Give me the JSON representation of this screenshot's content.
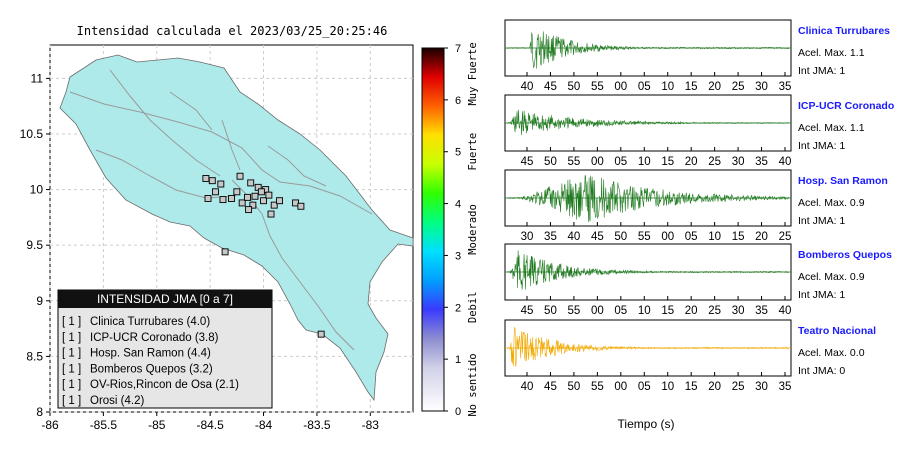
{
  "chart_data": [
    {
      "type": "map",
      "title": "Intensidad calculada el 2023/03/25_20:25:46",
      "x_ticks": [
        "-86",
        "-85.5",
        "-85",
        "-84.5",
        "-84",
        "-83.5",
        "-83"
      ],
      "y_ticks": [
        "11",
        "10.5",
        "10",
        "9.5",
        "9",
        "8.5",
        "8"
      ],
      "xlim": [
        -86,
        -82.6
      ],
      "ylim": [
        8,
        11.3
      ],
      "land_color": "#aeeaea",
      "stations": [
        {
          "lon": -84.54,
          "lat": 10.1
        },
        {
          "lon": -84.48,
          "lat": 10.08
        },
        {
          "lon": -84.4,
          "lat": 10.05
        },
        {
          "lon": -84.22,
          "lat": 10.12
        },
        {
          "lon": -84.12,
          "lat": 10.06
        },
        {
          "lon": -84.05,
          "lat": 10.02
        },
        {
          "lon": -83.98,
          "lat": 10.0
        },
        {
          "lon": -84.02,
          "lat": 9.98
        },
        {
          "lon": -84.3,
          "lat": 9.92
        },
        {
          "lon": -84.52,
          "lat": 9.92
        },
        {
          "lon": -84.38,
          "lat": 9.91
        },
        {
          "lon": -84.2,
          "lat": 9.88
        },
        {
          "lon": -84.1,
          "lat": 9.86
        },
        {
          "lon": -84.0,
          "lat": 9.9
        },
        {
          "lon": -83.95,
          "lat": 9.95
        },
        {
          "lon": -84.08,
          "lat": 9.94
        },
        {
          "lon": -83.9,
          "lat": 9.86
        },
        {
          "lon": -83.85,
          "lat": 9.9
        },
        {
          "lon": -84.15,
          "lat": 9.93
        },
        {
          "lon": -84.25,
          "lat": 9.98
        },
        {
          "lon": -83.7,
          "lat": 9.88
        },
        {
          "lon": -83.65,
          "lat": 9.85
        },
        {
          "lon": -83.93,
          "lat": 9.78
        },
        {
          "lon": -84.45,
          "lat": 9.98
        },
        {
          "lon": -84.14,
          "lat": 9.82
        },
        {
          "lon": -84.36,
          "lat": 9.44
        },
        {
          "lon": -83.46,
          "lat": 8.7
        }
      ],
      "colorbar": {
        "min": 0,
        "max": 7,
        "ticks": [
          "0",
          "1",
          "2",
          "3",
          "4",
          "5",
          "6",
          "7"
        ],
        "labels": [
          "No sentido",
          "Debil",
          "Moderado",
          "Fuerte",
          "Muy Fuerte"
        ]
      },
      "legend": {
        "title": "INTENSIDAD JMA [0 a 7]",
        "items": [
          {
            "count": "[ 1 ]",
            "label": "Clinica Turrubares (4.0)"
          },
          {
            "count": "[ 1 ]",
            "label": "ICP-UCR Coronado (3.8)"
          },
          {
            "count": "[ 1 ]",
            "label": "Hosp. San Ramon (4.4)"
          },
          {
            "count": "[ 1 ]",
            "label": "Bomberos Quepos (3.2)"
          },
          {
            "count": "[ 1 ]",
            "label": "OV-Rios,Rincon de Osa (2.1)"
          },
          {
            "count": "[ 1 ]",
            "label": "Orosi (4.2)"
          }
        ]
      }
    },
    {
      "type": "line",
      "xlabel": "Tiempo (s)",
      "panels": [
        {
          "name": "Clinica Turrubares",
          "acel": "Acel. Max. 1.1",
          "jma": "Int JMA: 1",
          "color": "#1f7a1f",
          "onset": 0.08,
          "peak": 0.09,
          "decay": 0.12,
          "amp": 0.95,
          "ticks": [
            "40",
            "45",
            "50",
            "55",
            "00",
            "05",
            "10",
            "15",
            "20",
            "25",
            "30",
            "35"
          ]
        },
        {
          "name": "ICP-UCR Coronado",
          "acel": "Acel. Max. 1.1",
          "jma": "Int JMA: 1",
          "color": "#1f7a1f",
          "onset": 0.01,
          "peak": 0.03,
          "decay": 0.22,
          "amp": 0.55,
          "ticks": [
            "45",
            "50",
            "55",
            "00",
            "05",
            "10",
            "15",
            "20",
            "25",
            "30",
            "35",
            "40"
          ]
        },
        {
          "name": "Hosp. San Ramon",
          "acel": "Acel. Max. 0.9",
          "jma": "Int JMA: 1",
          "color": "#1f7a1f",
          "onset": 0.04,
          "peak": 0.28,
          "decay": 0.25,
          "amp": 0.98,
          "ticks": [
            "30",
            "35",
            "40",
            "45",
            "50",
            "55",
            "00",
            "05",
            "10",
            "15",
            "20",
            "25"
          ]
        },
        {
          "name": "Bomberos Quepos",
          "acel": "Acel. Max. 0.9",
          "jma": "Int JMA: 1",
          "color": "#1f7a1f",
          "onset": 0.01,
          "peak": 0.03,
          "decay": 0.15,
          "amp": 0.9,
          "ticks": [
            "45",
            "50",
            "55",
            "00",
            "05",
            "10",
            "15",
            "20",
            "25",
            "30",
            "35",
            "40"
          ]
        },
        {
          "name": "Teatro Nacional",
          "acel": "Acel. Max. 0.0",
          "jma": "Int JMA: 0",
          "color": "#f2a900",
          "onset": 0.01,
          "peak": 0.02,
          "decay": 0.14,
          "amp": 0.9,
          "ticks": [
            "40",
            "45",
            "50",
            "55",
            "00",
            "05",
            "10",
            "15",
            "20",
            "25",
            "30",
            "35"
          ]
        }
      ]
    }
  ]
}
